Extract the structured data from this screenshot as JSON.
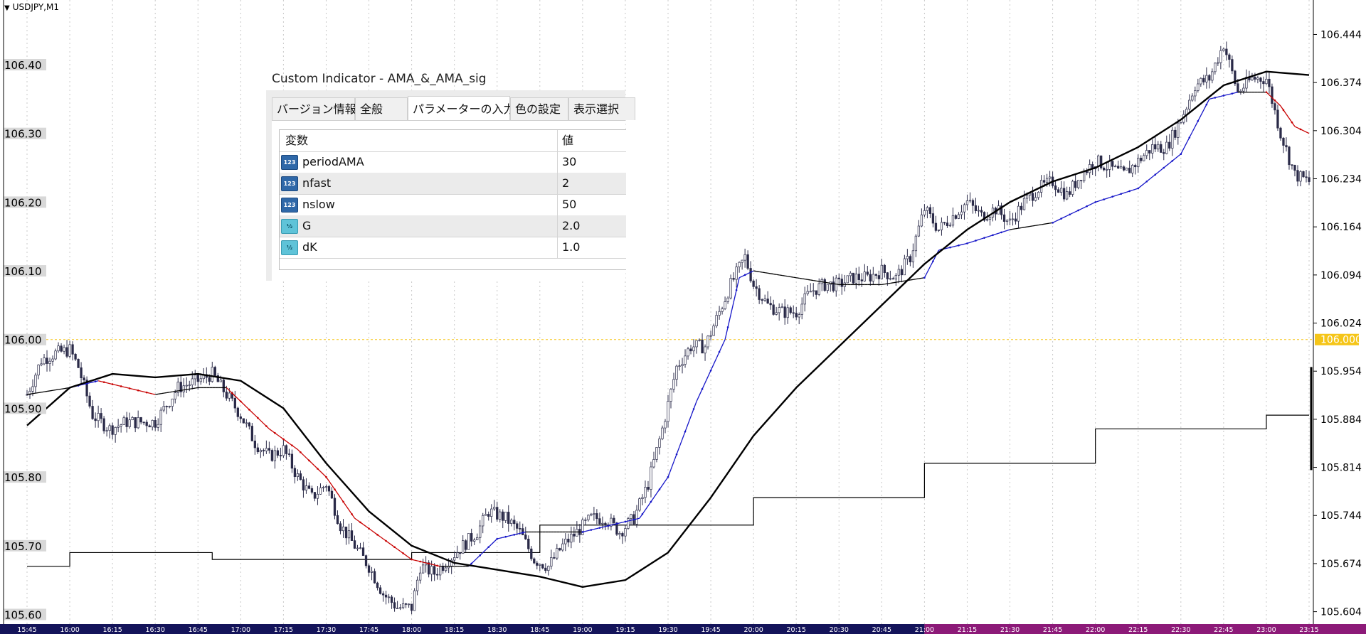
{
  "symbol": "USDJPY,M1",
  "colors": {
    "background": "#ffffff",
    "bull_candle": "#ffffff",
    "bear_candle": "#2a2a48",
    "ama_up": "#1414c8",
    "ama_down": "#c80000",
    "ama_flat": "#000000",
    "ma_line": "#000000",
    "level_line": "#f5c518",
    "time_axis_dark": "#14145a",
    "time_axis_purple": "#8c1a78",
    "price_box": "#d8d8d8"
  },
  "chart_data": {
    "type": "candlestick",
    "title": "USDJPY,M1",
    "x_ticks": [
      "15:45",
      "16:00",
      "16:15",
      "16:30",
      "16:45",
      "17:00",
      "17:15",
      "17:30",
      "17:45",
      "18:00",
      "18:15",
      "18:30",
      "18:45",
      "19:00",
      "19:15",
      "19:30",
      "19:45",
      "20:00",
      "20:15",
      "20:30",
      "20:45",
      "21:00",
      "21:15",
      "21:30",
      "21:45",
      "22:00",
      "22:15",
      "22:30",
      "22:45",
      "23:00",
      "23:15"
    ],
    "left_y_ticks": [
      "106.40",
      "106.30",
      "106.20",
      "106.10",
      "106.00",
      "105.90",
      "105.80",
      "105.70",
      "105.60"
    ],
    "right_y_ticks": [
      "106.444",
      "106.374",
      "106.304",
      "106.234",
      "106.164",
      "106.094",
      "106.024",
      "105.954",
      "105.884",
      "105.814",
      "105.744",
      "105.674",
      "105.604"
    ],
    "ylim": [
      105.586,
      106.49
    ],
    "current_level": "106.000",
    "level_value": 106.0,
    "close_path": [
      [
        "15:45",
        105.92
      ],
      [
        "15:50",
        105.97
      ],
      [
        "15:55",
        105.98
      ],
      [
        "16:00",
        105.985
      ],
      [
        "16:03",
        105.96
      ],
      [
        "16:08",
        105.89
      ],
      [
        "16:14",
        105.87
      ],
      [
        "16:20",
        105.88
      ],
      [
        "16:30",
        105.88
      ],
      [
        "16:38",
        105.93
      ],
      [
        "16:45",
        105.94
      ],
      [
        "16:50",
        105.95
      ],
      [
        "16:55",
        105.92
      ],
      [
        "17:00",
        105.89
      ],
      [
        "17:05",
        105.85
      ],
      [
        "17:10",
        105.83
      ],
      [
        "17:15",
        105.84
      ],
      [
        "17:20",
        105.8
      ],
      [
        "17:25",
        105.77
      ],
      [
        "17:30",
        105.79
      ],
      [
        "17:35",
        105.73
      ],
      [
        "17:40",
        105.7
      ],
      [
        "17:45",
        105.67
      ],
      [
        "17:50",
        105.63
      ],
      [
        "17:55",
        105.61
      ],
      [
        "18:00",
        105.61
      ],
      [
        "18:03",
        105.67
      ],
      [
        "18:08",
        105.66
      ],
      [
        "18:13",
        105.68
      ],
      [
        "18:18",
        105.7
      ],
      [
        "18:23",
        105.72
      ],
      [
        "18:27",
        105.75
      ],
      [
        "18:33",
        105.74
      ],
      [
        "18:38",
        105.72
      ],
      [
        "18:43",
        105.68
      ],
      [
        "18:48",
        105.67
      ],
      [
        "18:53",
        105.7
      ],
      [
        "18:58",
        105.72
      ],
      [
        "19:03",
        105.74
      ],
      [
        "19:08",
        105.74
      ],
      [
        "19:13",
        105.72
      ],
      [
        "19:18",
        105.74
      ],
      [
        "19:23",
        105.79
      ],
      [
        "19:28",
        105.87
      ],
      [
        "19:33",
        105.96
      ],
      [
        "19:38",
        105.99
      ],
      [
        "19:43",
        105.99
      ],
      [
        "19:47",
        106.03
      ],
      [
        "19:52",
        106.08
      ],
      [
        "19:57",
        106.12
      ],
      [
        "20:00",
        106.08
      ],
      [
        "20:05",
        106.05
      ],
      [
        "20:10",
        106.04
      ],
      [
        "20:15",
        106.04
      ],
      [
        "20:20",
        106.07
      ],
      [
        "20:25",
        106.08
      ],
      [
        "20:30",
        106.08
      ],
      [
        "20:35",
        106.09
      ],
      [
        "20:40",
        106.09
      ],
      [
        "20:45",
        106.1
      ],
      [
        "20:50",
        106.09
      ],
      [
        "20:55",
        106.12
      ],
      [
        "21:00",
        106.19
      ],
      [
        "21:05",
        106.16
      ],
      [
        "21:10",
        106.18
      ],
      [
        "21:15",
        106.2
      ],
      [
        "21:20",
        106.18
      ],
      [
        "21:25",
        106.19
      ],
      [
        "21:30",
        106.17
      ],
      [
        "21:35",
        106.2
      ],
      [
        "21:40",
        106.22
      ],
      [
        "21:45",
        106.23
      ],
      [
        "21:50",
        106.21
      ],
      [
        "21:55",
        106.24
      ],
      [
        "22:00",
        106.26
      ],
      [
        "22:05",
        106.25
      ],
      [
        "22:10",
        106.24
      ],
      [
        "22:15",
        106.26
      ],
      [
        "22:20",
        106.28
      ],
      [
        "22:25",
        106.28
      ],
      [
        "22:30",
        106.32
      ],
      [
        "22:35",
        106.37
      ],
      [
        "22:40",
        106.38
      ],
      [
        "22:45",
        106.43
      ],
      [
        "22:50",
        106.36
      ],
      [
        "22:55",
        106.38
      ],
      [
        "23:00",
        106.38
      ],
      [
        "23:05",
        106.3
      ],
      [
        "23:10",
        106.24
      ],
      [
        "23:15",
        106.23
      ]
    ],
    "ama_path": [
      [
        "15:45",
        105.92
      ],
      [
        "16:00",
        105.93
      ],
      [
        "16:10",
        105.94
      ],
      [
        "16:30",
        105.92
      ],
      [
        "16:45",
        105.93
      ],
      [
        "16:55",
        105.93
      ],
      [
        "17:00",
        105.91
      ],
      [
        "17:10",
        105.87
      ],
      [
        "17:20",
        105.84
      ],
      [
        "17:30",
        105.8
      ],
      [
        "17:40",
        105.74
      ],
      [
        "17:50",
        105.71
      ],
      [
        "18:00",
        105.68
      ],
      [
        "18:10",
        105.67
      ],
      [
        "18:20",
        105.67
      ],
      [
        "18:25",
        105.69
      ],
      [
        "18:30",
        105.71
      ],
      [
        "18:40",
        105.72
      ],
      [
        "18:50",
        105.72
      ],
      [
        "19:00",
        105.72
      ],
      [
        "19:10",
        105.73
      ],
      [
        "19:20",
        105.74
      ],
      [
        "19:30",
        105.8
      ],
      [
        "19:40",
        105.91
      ],
      [
        "19:50",
        106.0
      ],
      [
        "19:55",
        106.09
      ],
      [
        "20:00",
        106.1
      ],
      [
        "20:15",
        106.09
      ],
      [
        "20:30",
        106.08
      ],
      [
        "20:45",
        106.08
      ],
      [
        "21:00",
        106.09
      ],
      [
        "21:05",
        106.13
      ],
      [
        "21:15",
        106.14
      ],
      [
        "21:30",
        106.16
      ],
      [
        "21:45",
        106.17
      ],
      [
        "22:00",
        106.2
      ],
      [
        "22:15",
        106.22
      ],
      [
        "22:30",
        106.27
      ],
      [
        "22:40",
        106.35
      ],
      [
        "22:50",
        106.36
      ],
      [
        "23:00",
        106.36
      ],
      [
        "23:05",
        106.34
      ],
      [
        "23:10",
        106.31
      ],
      [
        "23:15",
        106.3
      ]
    ],
    "ma_path": [
      [
        "15:45",
        105.875
      ],
      [
        "16:00",
        105.93
      ],
      [
        "16:15",
        105.95
      ],
      [
        "16:30",
        105.945
      ],
      [
        "16:45",
        105.95
      ],
      [
        "17:00",
        105.94
      ],
      [
        "17:15",
        105.9
      ],
      [
        "17:30",
        105.82
      ],
      [
        "17:45",
        105.75
      ],
      [
        "18:00",
        105.7
      ],
      [
        "18:15",
        105.675
      ],
      [
        "18:30",
        105.665
      ],
      [
        "18:45",
        105.655
      ],
      [
        "19:00",
        105.64
      ],
      [
        "19:15",
        105.65
      ],
      [
        "19:30",
        105.69
      ],
      [
        "19:45",
        105.77
      ],
      [
        "20:00",
        105.86
      ],
      [
        "20:15",
        105.93
      ],
      [
        "20:30",
        105.99
      ],
      [
        "20:45",
        106.05
      ],
      [
        "21:00",
        106.11
      ],
      [
        "21:15",
        106.16
      ],
      [
        "21:30",
        106.2
      ],
      [
        "21:45",
        106.23
      ],
      [
        "22:00",
        106.25
      ],
      [
        "22:15",
        106.28
      ],
      [
        "22:30",
        106.32
      ],
      [
        "22:45",
        106.37
      ],
      [
        "23:00",
        106.39
      ],
      [
        "23:15",
        106.385
      ]
    ],
    "step_path": [
      [
        "15:45",
        105.67
      ],
      [
        "16:00",
        105.67
      ],
      [
        "16:00",
        105.69
      ],
      [
        "16:50",
        105.69
      ],
      [
        "16:50",
        105.68
      ],
      [
        "18:00",
        105.68
      ],
      [
        "18:00",
        105.69
      ],
      [
        "18:45",
        105.69
      ],
      [
        "18:45",
        105.73
      ],
      [
        "20:00",
        105.73
      ],
      [
        "20:00",
        105.77
      ],
      [
        "21:00",
        105.77
      ],
      [
        "21:00",
        105.82
      ],
      [
        "22:00",
        105.82
      ],
      [
        "22:00",
        105.87
      ],
      [
        "23:00",
        105.87
      ],
      [
        "23:00",
        105.89
      ],
      [
        "23:15",
        105.89
      ]
    ]
  },
  "dialog": {
    "title": "Custom Indicator - AMA_&_AMA_sig",
    "tabs": [
      "バージョン情報",
      "全般",
      "パラメーターの入力",
      "色の設定",
      "表示選択"
    ],
    "active_tab": 2,
    "columns": {
      "name": "変数",
      "value": "値"
    },
    "params": [
      {
        "name": "periodAMA",
        "value": "30",
        "type_icon": "123"
      },
      {
        "name": "nfast",
        "value": "2",
        "type_icon": "123"
      },
      {
        "name": "nslow",
        "value": "50",
        "type_icon": "123"
      },
      {
        "name": "G",
        "value": "2.0",
        "type_icon": "½"
      },
      {
        "name": "dK",
        "value": "1.0",
        "type_icon": "½"
      }
    ]
  }
}
